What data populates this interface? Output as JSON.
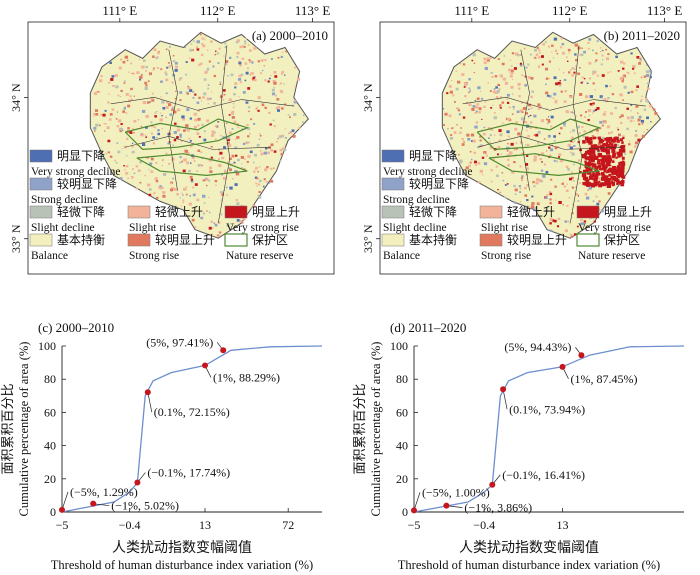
{
  "colors": {
    "very_strong_decline": "#4f6fb3",
    "strong_decline": "#8fa3c8",
    "slight_decline": "#b9c2b7",
    "balance": "#f3f0bf",
    "slight_rise": "#f2b39a",
    "strong_rise": "#e07a5f",
    "very_strong_rise": "#c4161c",
    "nature_reserve": "#4e8a2e",
    "curve": "#6d8fcf",
    "marker": "#c4161c"
  },
  "maps": [
    {
      "id": "a",
      "title": "(a) 2000–2010",
      "lon_ticks": [
        "111° E",
        "112° E",
        "113° E"
      ],
      "lat_ticks": [
        "34° N",
        "33° N"
      ],
      "legend": [
        {
          "cn": "明显下降",
          "en": "Very strong decline",
          "color_key": "very_strong_decline"
        },
        {
          "cn": "较明显下降",
          "en": "Strong decline",
          "color_key": "strong_decline"
        },
        {
          "cn": "轻微下降",
          "en": "Slight decline",
          "color_key": "slight_decline"
        },
        {
          "cn": "轻微上升",
          "en": "Slight rise",
          "color_key": "slight_rise"
        },
        {
          "cn": "明显上升",
          "en": "Very strong rise",
          "color_key": "very_strong_rise"
        },
        {
          "cn": "基本持衡",
          "en": "Balance",
          "color_key": "balance"
        },
        {
          "cn": "较明显上升",
          "en": "Strong rise",
          "color_key": "strong_rise"
        },
        {
          "cn": "保护区",
          "en": "Nature reserve",
          "color_key": "nature_reserve"
        }
      ]
    },
    {
      "id": "b",
      "title": "(b) 2011–2020",
      "lon_ticks": [
        "111° E",
        "112° E",
        "113° E"
      ],
      "lat_ticks": [
        "34° N",
        "33° N"
      ],
      "legend": [
        {
          "cn": "明显下降",
          "en": "Very strong decline",
          "color_key": "very_strong_decline"
        },
        {
          "cn": "较明显下降",
          "en": "Strong decline",
          "color_key": "strong_decline"
        },
        {
          "cn": "轻微下降",
          "en": "Slight decline",
          "color_key": "slight_decline"
        },
        {
          "cn": "轻微上升",
          "en": "Slight rise",
          "color_key": "slight_rise"
        },
        {
          "cn": "明显上升",
          "en": "Very strong rise",
          "color_key": "very_strong_rise"
        },
        {
          "cn": "基本持衡",
          "en": "Balance",
          "color_key": "balance"
        },
        {
          "cn": "较明显上升",
          "en": "Strong rise",
          "color_key": "strong_rise"
        },
        {
          "cn": "保护区",
          "en": "Nature reserve",
          "color_key": "nature_reserve"
        }
      ]
    }
  ],
  "chart_data": [
    {
      "type": "line",
      "title": "(c) 2000–2010",
      "xlabel_cn": "人类扰动指数变幅阈值",
      "xlabel": "Threshold of human disturbance index variation (%)",
      "ylabel_cn": "面积累积百分比",
      "ylabel": "Cumulative percentage of area (%)",
      "x_ticks": [
        "−5",
        "−0.4",
        "13",
        "72"
      ],
      "y_ticks": [
        0,
        20,
        40,
        60,
        80,
        100
      ],
      "ylim": [
        0,
        100
      ],
      "curve_t": [
        0,
        0.1,
        0.2,
        0.3,
        0.29,
        0.3,
        0.35,
        0.42,
        0.55,
        0.65,
        0.8,
        1.0
      ],
      "curve_y": [
        0,
        3,
        6,
        12,
        17.74,
        70,
        79,
        84,
        88.29,
        97.41,
        99.5,
        100
      ],
      "points": [
        {
          "label": "(−5%, 1.29%)",
          "t": 0.0,
          "y": 1.29
        },
        {
          "label": "(−1%, 5.02%)",
          "t": 0.12,
          "y": 5.02
        },
        {
          "label": "(−0.1%, 17.74%)",
          "t": 0.29,
          "y": 17.74
        },
        {
          "label": "(0.1%, 72.15%)",
          "t": 0.33,
          "y": 72.15
        },
        {
          "label": "(1%, 88.29%)",
          "t": 0.55,
          "y": 88.29
        },
        {
          "label": "(5%, 97.41%)",
          "t": 0.62,
          "y": 97.41
        }
      ]
    },
    {
      "type": "line",
      "title": "(d) 2011–2020",
      "xlabel_cn": "人类扰动指数变幅阈值",
      "xlabel": "Threshold of human disturbance index variation (%)",
      "ylabel_cn": "面积累积百分比",
      "ylabel": "Cumulative percentage of area (%)",
      "x_ticks": [
        "−5",
        "−0.4",
        "13"
      ],
      "y_ticks": [
        0,
        20,
        40,
        60,
        80,
        100
      ],
      "ylim": [
        0,
        100
      ],
      "curve_t": [
        0,
        0.1,
        0.2,
        0.3,
        0.29,
        0.3,
        0.35,
        0.42,
        0.55,
        0.65,
        0.8,
        1.0
      ],
      "curve_y": [
        0,
        3,
        6,
        12,
        16.41,
        70,
        79,
        84,
        87.45,
        94.43,
        99.5,
        100
      ],
      "points": [
        {
          "label": "(−5%, 1.00%)",
          "t": 0.0,
          "y": 1.0
        },
        {
          "label": "(−1%, 3.86%)",
          "t": 0.12,
          "y": 3.86
        },
        {
          "label": "(−0.1%, 16.41%)",
          "t": 0.29,
          "y": 16.41
        },
        {
          "label": "(0.1%, 73.94%)",
          "t": 0.33,
          "y": 73.94
        },
        {
          "label": "(1%, 87.45%)",
          "t": 0.55,
          "y": 87.45
        },
        {
          "label": "(5%, 94.43%)",
          "t": 0.62,
          "y": 94.43
        }
      ]
    }
  ]
}
